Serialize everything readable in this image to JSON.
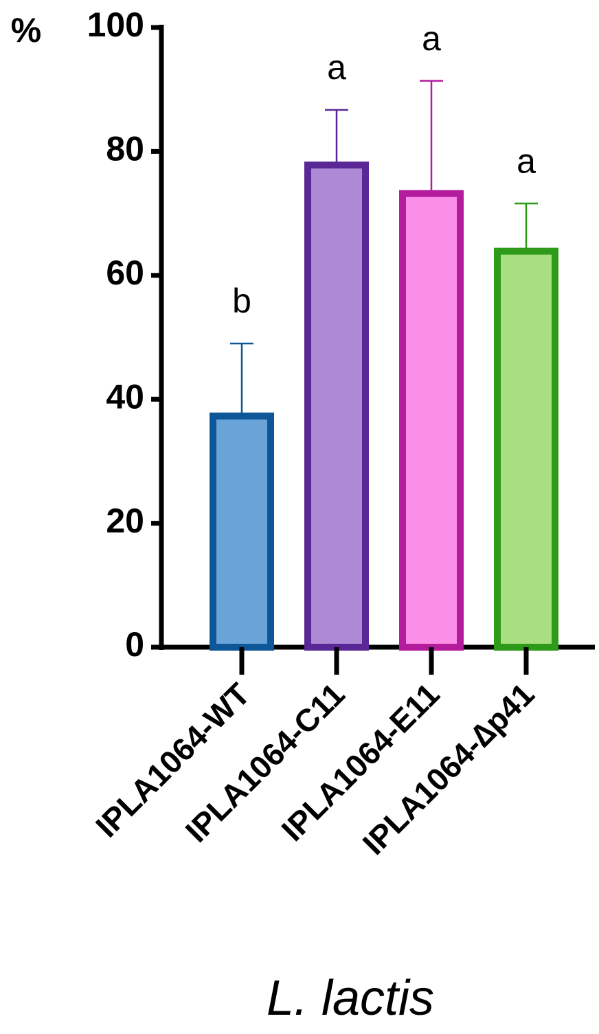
{
  "chart_data": {
    "type": "bar",
    "y_label": "%",
    "x_label": "L. lactis",
    "categories": [
      "IPLA1064-WT",
      "IPLA1064-C11",
      "IPLA1064-E11",
      "IPLA1064-∆p41"
    ],
    "values": [
      37.3,
      77.8,
      73.2,
      63.9
    ],
    "errors": [
      11.7,
      8.9,
      18.2,
      7.7
    ],
    "letters": [
      "b",
      "a",
      "a",
      "a"
    ],
    "colors": [
      "#6aa3d8",
      "#ad89d6",
      "#fb8ee6",
      "#a9df80"
    ],
    "edge_colors": [
      "#0d5799",
      "#5a2896",
      "#b41c9e",
      "#2d9a1a"
    ],
    "ylim": [
      0,
      100
    ],
    "yticks": [
      0,
      20,
      40,
      60,
      80,
      100
    ]
  }
}
